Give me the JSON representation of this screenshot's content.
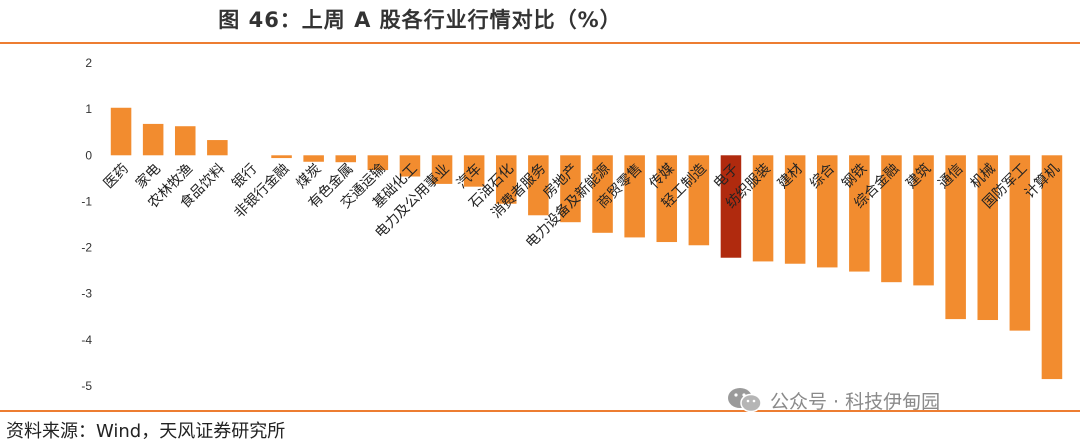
{
  "header": {
    "title": "图 46：上周 A 股各行业行情对比（%）"
  },
  "footer": {
    "source": "资料来源：Wind，天风证券研究所"
  },
  "watermark": {
    "text": "公众号 · 科技伊甸园",
    "icon": "wechat-icon"
  },
  "colors": {
    "bar": "#F28C2F",
    "highlight": "#B02A0E",
    "rule": "#ED7D31"
  },
  "chart_data": {
    "type": "bar",
    "title": "图 46：上周 A 股各行业行情对比（%）",
    "xlabel": "",
    "ylabel": "",
    "ylim": [
      -5,
      2
    ],
    "yticks": [
      2,
      1,
      0,
      -1,
      -2,
      -3,
      -4,
      -5
    ],
    "grid": false,
    "highlight_category": "电子",
    "categories": [
      "医药",
      "家电",
      "农林牧渔",
      "食品饮料",
      "银行",
      "非银行金融",
      "煤炭",
      "有色金属",
      "交通运输",
      "基础化工",
      "电力及公用事业",
      "汽车",
      "石油石化",
      "消费者服务",
      "房地产",
      "电力设备及新能源",
      "商贸零售",
      "传媒",
      "轻工制造",
      "电子",
      "纺织服装",
      "建材",
      "综合",
      "钢铁",
      "综合金融",
      "建筑",
      "通信",
      "机械",
      "国防军工",
      "计算机"
    ],
    "values": [
      1.03,
      0.68,
      0.63,
      0.33,
      0.0,
      -0.06,
      -0.14,
      -0.15,
      -0.32,
      -0.46,
      -0.62,
      -0.68,
      -1.05,
      -1.3,
      -1.45,
      -1.68,
      -1.78,
      -1.88,
      -1.95,
      -2.22,
      -2.3,
      -2.35,
      -2.43,
      -2.52,
      -2.75,
      -2.82,
      -3.55,
      -3.57,
      -3.8,
      -4.85
    ]
  }
}
